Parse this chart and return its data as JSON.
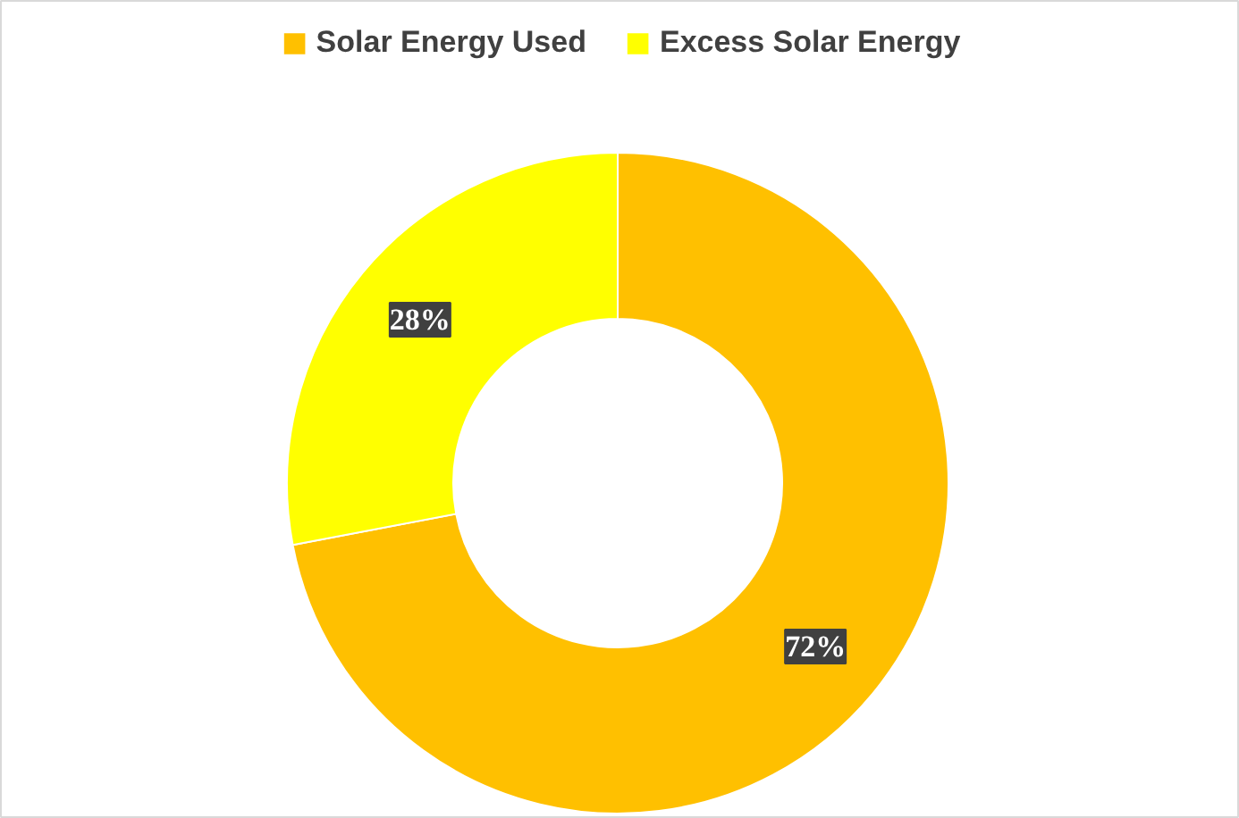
{
  "chart_data": {
    "type": "donut",
    "categories": [
      "Solar Energy Used",
      "Excess Solar Energy"
    ],
    "values": [
      72,
      28
    ],
    "colors": [
      "#ffc000",
      "#ffff00"
    ],
    "value_labels": [
      "72%",
      "28%"
    ],
    "legend": "top"
  }
}
